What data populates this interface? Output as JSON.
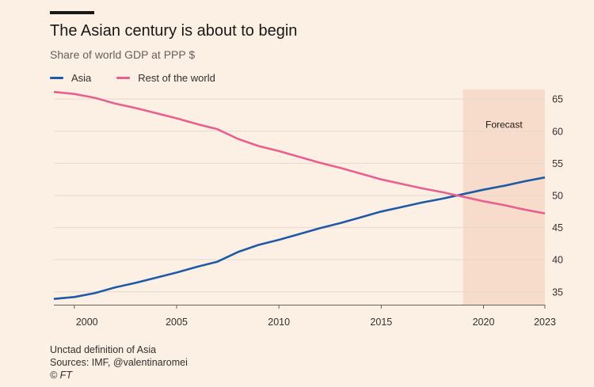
{
  "header": {
    "title": "The Asian century is about to begin",
    "subtitle": "Share of world GDP at PPP $"
  },
  "footer": {
    "note": "Unctad definition of Asia",
    "sources": "Sources: IMF, @valentinaromei",
    "copyright": "© FT"
  },
  "colors": {
    "background": "#fcefe4",
    "forecast_band": "#f7dccb",
    "asia": "#1f5aa6",
    "rest_of_world": "#e8608f",
    "grid": "#e6d9ce"
  },
  "chart_data": {
    "type": "line",
    "title": "The Asian century is about to begin",
    "subtitle": "Share of world GDP at PPP $",
    "xlabel": "",
    "ylabel": "",
    "x": [
      1999,
      2000,
      2001,
      2002,
      2003,
      2004,
      2005,
      2006,
      2007,
      2008,
      2009,
      2010,
      2011,
      2012,
      2013,
      2014,
      2015,
      2016,
      2017,
      2018,
      2019,
      2020,
      2021,
      2022,
      2023
    ],
    "series": [
      {
        "name": "Asia",
        "color": "#1f5aa6",
        "values": [
          33.9,
          34.2,
          34.8,
          35.7,
          36.4,
          37.2,
          38.0,
          38.9,
          39.7,
          41.2,
          42.3,
          43.1,
          44.0,
          44.9,
          45.7,
          46.6,
          47.5,
          48.2,
          48.9,
          49.5,
          50.2,
          50.9,
          51.5,
          52.2,
          52.8
        ]
      },
      {
        "name": "Rest of the world",
        "color": "#e8608f",
        "values": [
          66.1,
          65.8,
          65.2,
          64.3,
          63.6,
          62.8,
          62.0,
          61.1,
          60.3,
          58.8,
          57.7,
          56.9,
          56.0,
          55.1,
          54.3,
          53.4,
          52.5,
          51.8,
          51.1,
          50.5,
          49.8,
          49.1,
          48.5,
          47.8,
          47.2
        ]
      }
    ],
    "x_ticks": [
      "2000",
      "2005",
      "2010",
      "2015",
      "2020",
      "2023"
    ],
    "x_tick_values": [
      2000,
      2005,
      2010,
      2015,
      2020,
      2023
    ],
    "y_ticks": [
      35,
      40,
      45,
      50,
      55,
      60,
      65
    ],
    "xlim": [
      1999,
      2023
    ],
    "ylim": [
      33,
      66.5
    ],
    "grid": "horizontal",
    "y_axis_side": "right",
    "legend": "top-left",
    "forecast": {
      "label": "Forecast",
      "start": 2019,
      "end": 2023
    }
  }
}
